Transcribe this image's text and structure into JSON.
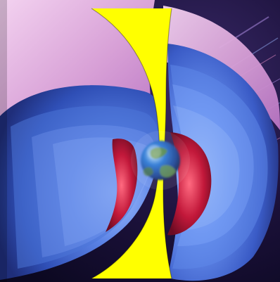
{
  "scene": {
    "subject": "magnetosphere",
    "colors": {
      "space": "#1a1038",
      "outer-belt-pink": "#d9a0d6",
      "outer-belt-blue": "#3f63c9",
      "inner-belt-red": "#c2183a",
      "cutaway-yellow": "#ffff00",
      "earth-blue": "#2a78d6",
      "earth-green": "#5b8c3a"
    }
  }
}
